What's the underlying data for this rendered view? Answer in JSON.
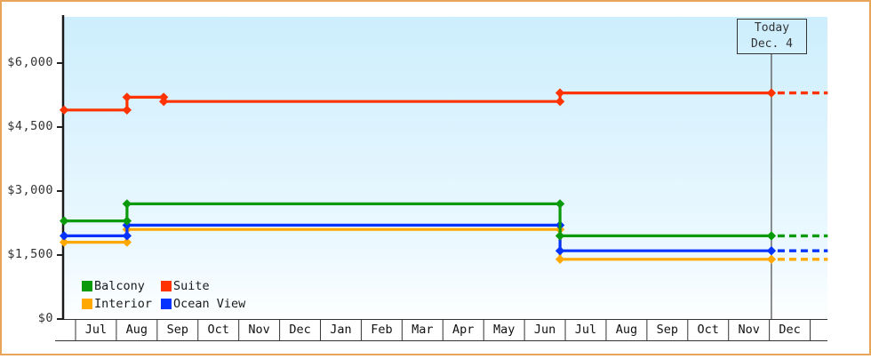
{
  "legend": [
    {
      "name": "balcony",
      "label": "Balcony",
      "color": "#0a9a0a"
    },
    {
      "name": "suite",
      "label": "Suite",
      "color": "#ff3300"
    },
    {
      "name": "interior",
      "label": "Interior",
      "color": "#ffa800"
    },
    {
      "name": "ocean-view",
      "label": "Ocean View",
      "color": "#0433ff"
    }
  ],
  "chart_data": {
    "type": "line",
    "subtype": "step-price-history",
    "title": "",
    "x_axis": {
      "months": [
        "Jul",
        "Aug",
        "Sep",
        "Oct",
        "Nov",
        "Dec",
        "Jan",
        "Feb",
        "Mar",
        "Apr",
        "May",
        "Jun",
        "Jul",
        "Aug",
        "Sep",
        "Oct",
        "Nov",
        "Dec"
      ]
    },
    "y_axis": {
      "range": [
        0,
        6600
      ],
      "ticks": [
        {
          "value": 0,
          "label": "$0"
        },
        {
          "value": 1500,
          "label": "$1,500"
        },
        {
          "value": 3000,
          "label": "$3,000"
        },
        {
          "value": 4500,
          "label": "$4,500"
        },
        {
          "value": 6000,
          "label": "$6,000"
        }
      ]
    },
    "today": {
      "label": "Today",
      "date": "Dec. 4",
      "month_pos": 17.05
    },
    "start_month_pos": -0.28,
    "end_month_pos": 18.43,
    "series": [
      {
        "name": "Interior",
        "color": "#ffa800",
        "changes": [
          [
            -0.28,
            1800
          ],
          [
            1.26,
            2100
          ],
          [
            11.87,
            1400
          ]
        ]
      },
      {
        "name": "Ocean View",
        "color": "#0433ff",
        "changes": [
          [
            -0.28,
            1950
          ],
          [
            1.26,
            2200
          ],
          [
            11.87,
            1600
          ]
        ]
      },
      {
        "name": "Balcony",
        "color": "#0a9a0a",
        "changes": [
          [
            -0.28,
            2300
          ],
          [
            1.26,
            2700
          ],
          [
            11.87,
            1950
          ]
        ]
      },
      {
        "name": "Suite",
        "color": "#ff3300",
        "changes": [
          [
            -0.28,
            4900
          ],
          [
            1.26,
            5200
          ],
          [
            2.16,
            5100
          ],
          [
            11.87,
            5300
          ]
        ]
      }
    ]
  }
}
